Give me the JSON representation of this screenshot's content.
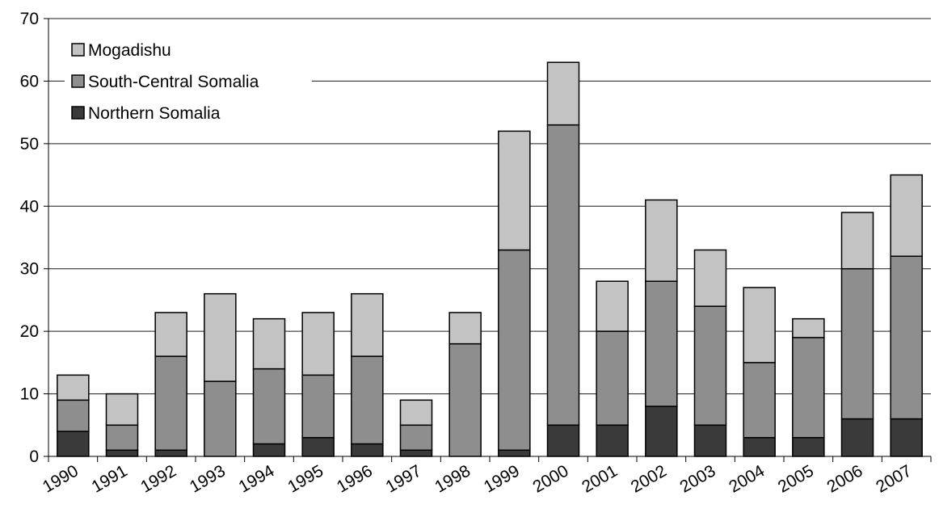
{
  "chart_data": {
    "type": "bar",
    "stacked": true,
    "title": "",
    "xlabel": "",
    "ylabel": "",
    "ylim": [
      0,
      70
    ],
    "yticks": [
      0,
      10,
      20,
      30,
      40,
      50,
      60,
      70
    ],
    "grid": "horizontal",
    "legend_position": "top-left",
    "categories": [
      "1990",
      "1991",
      "1992",
      "1993",
      "1994",
      "1995",
      "1996",
      "1997",
      "1998",
      "1999",
      "2000",
      "2001",
      "2002",
      "2003",
      "2004",
      "2005",
      "2006",
      "2007"
    ],
    "series": [
      {
        "name": "Northern Somalia",
        "color": "#3a3a3a",
        "values": [
          4,
          1,
          1,
          0,
          2,
          3,
          2,
          1,
          0,
          1,
          5,
          5,
          8,
          5,
          3,
          3,
          6,
          6
        ]
      },
      {
        "name": "South-Central Somalia",
        "color": "#8e8e8e",
        "values": [
          5,
          4,
          15,
          12,
          12,
          10,
          14,
          4,
          18,
          32,
          48,
          15,
          20,
          19,
          12,
          16,
          24,
          26
        ]
      },
      {
        "name": "Mogadishu",
        "color": "#c3c3c3",
        "values": [
          4,
          5,
          7,
          14,
          8,
          10,
          10,
          4,
          5,
          19,
          10,
          8,
          13,
          9,
          12,
          3,
          9,
          13
        ]
      }
    ],
    "legend_order": [
      "Mogadishu",
      "South-Central Somalia",
      "Northern Somalia"
    ]
  }
}
